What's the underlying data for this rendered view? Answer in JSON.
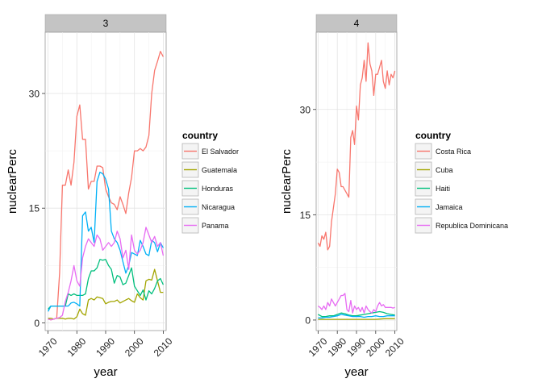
{
  "chart_data": [
    {
      "type": "line",
      "strip_label": "3",
      "xlabel": "year",
      "ylabel": "nuclearPerc",
      "xlim": [
        1969,
        2011
      ],
      "ylim": [
        -1,
        38
      ],
      "x_ticks": [
        1970,
        1980,
        1990,
        2000,
        2010
      ],
      "x_tick_labels": [
        "1970",
        "1980",
        "1990",
        "2000",
        "2010"
      ],
      "y_ticks": [
        0,
        15,
        30
      ],
      "y_tick_labels": [
        "0",
        "15",
        "30"
      ],
      "grid": true,
      "legend": {
        "title": "country",
        "placement": "right"
      },
      "series": [
        {
          "name": "El Salvador",
          "color": "#F8766D",
          "x": [
            1970,
            1971,
            1972,
            1973,
            1974,
            1975,
            1976,
            1977,
            1978,
            1979,
            1980,
            1981,
            1982,
            1983,
            1984,
            1985,
            1986,
            1987,
            1988,
            1989,
            1990,
            1991,
            1992,
            1993,
            1994,
            1995,
            1996,
            1997,
            1998,
            1999,
            2000,
            2001,
            2002,
            2003,
            2004,
            2005,
            2006,
            2007,
            2008,
            2009,
            2010
          ],
          "values": [
            0.5,
            0.4,
            0.5,
            0.6,
            6.5,
            18.0,
            18.0,
            20.0,
            18.0,
            21.0,
            27.0,
            28.5,
            24.0,
            24.0,
            17.5,
            18.5,
            18.5,
            20.5,
            20.5,
            20.3,
            17.5,
            16.5,
            15.7,
            15.5,
            14.8,
            16.5,
            15.5,
            14.3,
            17.0,
            19.0,
            22.5,
            22.5,
            22.8,
            22.5,
            23.0,
            24.5,
            30.0,
            33.0,
            34.2,
            35.5,
            34.8
          ]
        },
        {
          "name": "Guatemala",
          "color": "#A3A500",
          "x": [
            1970,
            1971,
            1972,
            1973,
            1974,
            1975,
            1976,
            1977,
            1978,
            1979,
            1980,
            1981,
            1982,
            1983,
            1984,
            1985,
            1986,
            1987,
            1988,
            1989,
            1990,
            1991,
            1992,
            1993,
            1994,
            1995,
            1996,
            1997,
            1998,
            1999,
            2000,
            2001,
            2002,
            2003,
            2004,
            2005,
            2006,
            2007,
            2008,
            2009,
            2010
          ],
          "values": [
            0.6,
            0.6,
            0.5,
            0.6,
            0.6,
            0.6,
            0.5,
            0.6,
            0.6,
            0.5,
            0.8,
            1.8,
            1.2,
            1.0,
            3.0,
            3.2,
            3.0,
            3.4,
            3.3,
            3.2,
            2.5,
            2.7,
            2.8,
            2.8,
            3.0,
            2.6,
            2.8,
            3.0,
            3.2,
            2.9,
            2.7,
            3.8,
            3.3,
            3.0,
            5.5,
            5.7,
            5.6,
            7.0,
            5.5,
            4.0,
            4.0
          ]
        },
        {
          "name": "Honduras",
          "color": "#00BF7D",
          "x": [
            1970,
            1971,
            1972,
            1973,
            1974,
            1975,
            1976,
            1977,
            1978,
            1979,
            1980,
            1981,
            1982,
            1983,
            1984,
            1985,
            1986,
            1987,
            1988,
            1989,
            1990,
            1991,
            1992,
            1993,
            1994,
            1995,
            1996,
            1997,
            1998,
            1999,
            2000,
            2001,
            2002,
            2003,
            2004,
            2005,
            2006,
            2007,
            2008,
            2009,
            2010
          ],
          "values": [
            1.8,
            2.2,
            2.2,
            2.2,
            2.2,
            2.2,
            2.2,
            3.8,
            3.6,
            3.8,
            3.6,
            3.6,
            3.6,
            3.8,
            5.8,
            6.8,
            6.8,
            7.2,
            8.3,
            8.2,
            8.3,
            7.5,
            7.0,
            5.2,
            6.2,
            6.0,
            5.0,
            5.2,
            6.2,
            7.2,
            4.8,
            4.2,
            3.6,
            4.3,
            3.0,
            4.2,
            3.8,
            4.5,
            5.5,
            5.8,
            5.0
          ]
        },
        {
          "name": "Nicaragua",
          "color": "#00B0F6",
          "x": [
            1970,
            1971,
            1972,
            1973,
            1974,
            1975,
            1976,
            1977,
            1978,
            1979,
            1980,
            1981,
            1982,
            1983,
            1984,
            1985,
            1986,
            1987,
            1988,
            1989,
            1990,
            1991,
            1992,
            1993,
            1994,
            1995,
            1996,
            1997,
            1998,
            1999,
            2000,
            2001,
            2002,
            2003,
            2004,
            2005,
            2006,
            2007,
            2008,
            2009,
            2010
          ],
          "values": [
            1.5,
            2.2,
            2.2,
            2.2,
            2.2,
            2.2,
            2.2,
            2.2,
            2.6,
            2.7,
            2.5,
            2.2,
            14.0,
            14.5,
            12.0,
            12.5,
            10.5,
            18.5,
            19.7,
            19.5,
            18.8,
            17.5,
            12.0,
            11.0,
            10.5,
            9.5,
            8.0,
            6.5,
            7.5,
            9.2,
            9.0,
            8.8,
            10.8,
            10.0,
            9.0,
            8.8,
            10.8,
            10.5,
            9.3,
            10.5,
            9.8
          ]
        },
        {
          "name": "Panama",
          "color": "#E76BF3",
          "x": [
            1970,
            1971,
            1972,
            1973,
            1974,
            1975,
            1976,
            1977,
            1978,
            1979,
            1980,
            1981,
            1982,
            1983,
            1984,
            1985,
            1986,
            1987,
            1988,
            1989,
            1990,
            1991,
            1992,
            1993,
            1994,
            1995,
            1996,
            1997,
            1998,
            1999,
            2000,
            2001,
            2002,
            2003,
            2004,
            2005,
            2006,
            2007,
            2008,
            2009,
            2010
          ],
          "values": [
            0.5,
            0.4,
            0.5,
            0.6,
            0.7,
            1.0,
            2.8,
            4.0,
            5.5,
            7.5,
            5.5,
            4.8,
            8.5,
            10.0,
            11.0,
            10.5,
            10.0,
            11.5,
            11.0,
            9.5,
            10.0,
            10.5,
            10.0,
            10.5,
            12.0,
            11.0,
            8.5,
            9.5,
            7.0,
            11.5,
            9.5,
            9.0,
            9.5,
            10.5,
            12.5,
            11.5,
            10.5,
            11.3,
            10.0,
            10.5,
            8.8
          ]
        }
      ]
    },
    {
      "type": "line",
      "strip_label": "4",
      "xlabel": "year",
      "ylabel": "nuclearPerc",
      "xlim": [
        1969,
        2011
      ],
      "ylim": [
        -1.5,
        41
      ],
      "x_ticks": [
        1970,
        1980,
        1990,
        2000,
        2010
      ],
      "x_tick_labels": [
        "1970",
        "1980",
        "1990",
        "2000",
        "2010"
      ],
      "y_ticks": [
        0,
        15,
        30
      ],
      "y_tick_labels": [
        "0",
        "15",
        "30"
      ],
      "grid": true,
      "legend": {
        "title": "country",
        "placement": "right"
      },
      "series": [
        {
          "name": "Costa Rica",
          "color": "#F8766D",
          "x": [
            1970,
            1971,
            1972,
            1973,
            1974,
            1975,
            1976,
            1977,
            1978,
            1979,
            1980,
            1981,
            1982,
            1983,
            1984,
            1985,
            1986,
            1987,
            1988,
            1989,
            1990,
            1991,
            1992,
            1993,
            1994,
            1995,
            1996,
            1997,
            1998,
            1999,
            2000,
            2001,
            2002,
            2003,
            2004,
            2005,
            2006,
            2007,
            2008,
            2009,
            2010
          ],
          "values": [
            11.0,
            10.5,
            12.0,
            11.5,
            12.5,
            10.0,
            10.5,
            14.0,
            16.0,
            18.0,
            21.5,
            21.0,
            19.0,
            19.0,
            18.5,
            18.0,
            17.5,
            26.0,
            27.0,
            25.0,
            30.5,
            28.5,
            33.5,
            34.5,
            37.0,
            34.0,
            39.5,
            36.5,
            35.5,
            32.0,
            35.0,
            35.0,
            36.0,
            37.0,
            34.0,
            33.0,
            35.5,
            33.5,
            35.0,
            34.5,
            35.5
          ]
        },
        {
          "name": "Cuba",
          "color": "#A3A500",
          "x": [
            1970,
            1975,
            1980,
            1985,
            1990,
            1995,
            2000,
            2005,
            2010
          ],
          "values": [
            0.1,
            0.1,
            0.1,
            0.1,
            0.1,
            0.1,
            0.1,
            0.2,
            0.2
          ]
        },
        {
          "name": "Haiti",
          "color": "#00BF7D",
          "x": [
            1970,
            1972,
            1974,
            1976,
            1978,
            1980,
            1982,
            1984,
            1986,
            1988,
            1990,
            1992,
            1994,
            1996,
            1998,
            2000,
            2002,
            2004,
            2006,
            2008,
            2010
          ],
          "values": [
            0.8,
            0.5,
            0.5,
            0.6,
            0.6,
            0.8,
            1.0,
            0.9,
            0.7,
            0.6,
            0.6,
            0.7,
            0.8,
            0.9,
            1.0,
            1.1,
            1.2,
            1.1,
            0.9,
            0.8,
            0.7
          ]
        },
        {
          "name": "Jamaica",
          "color": "#00B0F6",
          "x": [
            1970,
            1972,
            1974,
            1976,
            1978,
            1980,
            1982,
            1984,
            1986,
            1988,
            1990,
            1992,
            1994,
            1996,
            1998,
            2000,
            2002,
            2004,
            2006,
            2008,
            2010
          ],
          "values": [
            0.3,
            0.3,
            0.4,
            0.4,
            0.5,
            0.6,
            0.8,
            0.7,
            0.6,
            0.5,
            0.5,
            0.5,
            0.4,
            0.5,
            0.5,
            0.6,
            0.5,
            0.5,
            0.6,
            0.6,
            0.6
          ]
        },
        {
          "name": "Republica Dominicana",
          "color": "#E76BF3",
          "x": [
            1970,
            1971,
            1972,
            1973,
            1974,
            1975,
            1976,
            1977,
            1978,
            1979,
            1980,
            1981,
            1982,
            1983,
            1984,
            1985,
            1986,
            1987,
            1988,
            1989,
            1990,
            1991,
            1992,
            1993,
            1994,
            1995,
            1996,
            1997,
            1998,
            1999,
            2000,
            2001,
            2002,
            2003,
            2004,
            2005,
            2006,
            2007,
            2008,
            2009,
            2010
          ],
          "values": [
            2.0,
            1.8,
            1.5,
            2.0,
            1.5,
            2.5,
            2.0,
            3.0,
            2.5,
            2.0,
            2.5,
            3.0,
            3.5,
            3.5,
            3.8,
            1.5,
            1.2,
            2.8,
            1.0,
            2.0,
            1.5,
            1.8,
            1.2,
            1.8,
            1.0,
            2.0,
            1.5,
            1.2,
            1.0,
            1.5,
            1.2,
            2.0,
            2.5,
            2.0,
            2.2,
            1.8,
            1.8,
            1.8,
            1.8,
            1.7,
            1.8
          ]
        }
      ]
    }
  ]
}
